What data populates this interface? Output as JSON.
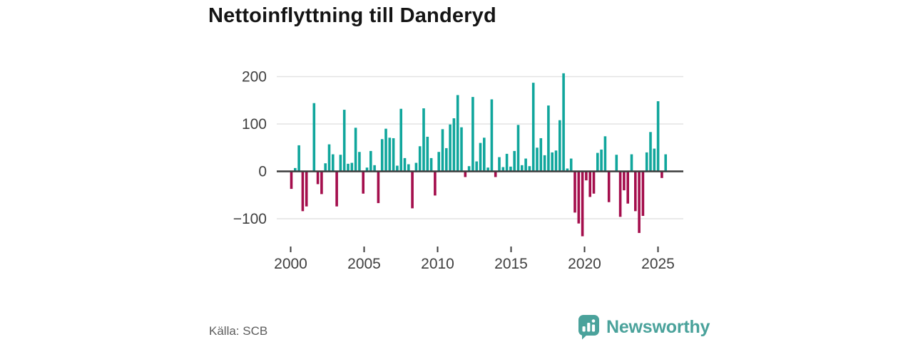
{
  "header": {
    "title": "Nettoinflyttning till Danderyd"
  },
  "footer": {
    "source": "Källa: SCB",
    "brand_name": "Newsworthy"
  },
  "colors": {
    "positive_bar": "#10a69c",
    "negative_bar": "#a40e4c",
    "axis_line": "#3c3c3c",
    "gridline": "#e3e3e3",
    "tick_text": "#3f3f3f",
    "brand_teal": "#4aa29b",
    "title_text": "#141414",
    "source_text": "#5c5c5c"
  },
  "chart_data": {
    "type": "bar",
    "title": "Nettoinflyttning till Danderyd",
    "frequency": "quarterly",
    "start_period": "2000-Q1",
    "end_period": "2024-Q4",
    "xlabel": "",
    "ylabel": "",
    "ylim": [
      -150,
      225
    ],
    "grid": "horizontal",
    "legend": "none",
    "y_ticks": [
      200,
      100,
      0,
      -100
    ],
    "y_tick_labels": [
      "200",
      "100",
      "0",
      "−100"
    ],
    "x_tick_years": [
      2000,
      2005,
      2010,
      2015,
      2020,
      2025
    ],
    "x_tick_labels": [
      "2000",
      "2005",
      "2010",
      "2015",
      "2020",
      "2025"
    ],
    "values": [
      -37,
      7,
      55,
      -84,
      -74,
      0,
      144,
      -27,
      -48,
      17,
      57,
      36,
      -74,
      35,
      130,
      16,
      18,
      92,
      41,
      -47,
      8,
      43,
      13,
      -67,
      68,
      90,
      71,
      70,
      12,
      132,
      28,
      15,
      -78,
      18,
      53,
      133,
      73,
      28,
      -51,
      41,
      89,
      49,
      99,
      112,
      161,
      93,
      -12,
      11,
      157,
      21,
      60,
      71,
      8,
      152,
      -12,
      30,
      9,
      37,
      10,
      43,
      98,
      13,
      27,
      11,
      187,
      50,
      70,
      34,
      139,
      40,
      44,
      108,
      207,
      6,
      27,
      -87,
      -110,
      -137,
      -19,
      -54,
      -47,
      39,
      46,
      74,
      -65,
      0,
      35,
      -96,
      -40,
      -68,
      36,
      -84,
      -130,
      -94,
      40,
      83,
      48,
      148,
      -14,
      36
    ]
  }
}
